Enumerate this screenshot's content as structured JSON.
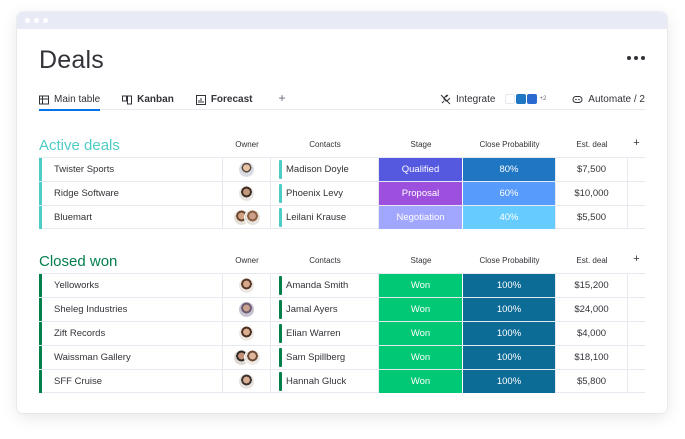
{
  "page": {
    "title": "Deals"
  },
  "tabs": [
    {
      "label": "Main table",
      "icon": "table-icon"
    },
    {
      "label": "Kanban",
      "icon": "kanban-icon"
    },
    {
      "label": "Forecast",
      "icon": "chart-icon"
    }
  ],
  "toolbar": {
    "integrate_label": "Integrate",
    "integrate_more": "+2",
    "automate_label": "Automate / 2"
  },
  "columns": {
    "owner": "Owner",
    "contacts": "Contacts",
    "stage": "Stage",
    "probability": "Close Probability",
    "deal": "Est. deal",
    "add": "+"
  },
  "colors": {
    "active": "#4eccc6",
    "won_group": "#037f4c",
    "qualified": "#5559df",
    "proposal": "#9d50dd",
    "negotiation": "#a1a6ff",
    "won": "#00c875",
    "p80": "#1f76c2",
    "p60": "#579bfc",
    "p40": "#66ccff",
    "p100": "#0c6c96"
  },
  "groups": {
    "active": {
      "title": "Active deals",
      "rows": [
        {
          "name": "Twister Sports",
          "contact": "Madison Doyle",
          "stage": "Qualified",
          "probability": "80%",
          "deal": "$7,500"
        },
        {
          "name": "Ridge Software",
          "contact": "Phoenix Levy",
          "stage": "Proposal",
          "probability": "60%",
          "deal": "$10,000"
        },
        {
          "name": "Bluemart",
          "contact": "Leilani Krause",
          "stage": "Negotiation",
          "probability": "40%",
          "deal": "$5,500"
        }
      ]
    },
    "won": {
      "title": "Closed won",
      "rows": [
        {
          "name": "Yelloworks",
          "contact": "Amanda Smith",
          "stage": "Won",
          "probability": "100%",
          "deal": "$15,200"
        },
        {
          "name": "Sheleg Industries",
          "contact": "Jamal Ayers",
          "stage": "Won",
          "probability": "100%",
          "deal": "$24,000"
        },
        {
          "name": "Zift Records",
          "contact": "Elian Warren",
          "stage": "Won",
          "probability": "100%",
          "deal": "$4,000"
        },
        {
          "name": "Waissman Gallery",
          "contact": "Sam Spillberg",
          "stage": "Won",
          "probability": "100%",
          "deal": "$18,100"
        },
        {
          "name": "SFF Cruise",
          "contact": "Hannah Gluck",
          "stage": "Won",
          "probability": "100%",
          "deal": "$5,800"
        }
      ]
    }
  }
}
